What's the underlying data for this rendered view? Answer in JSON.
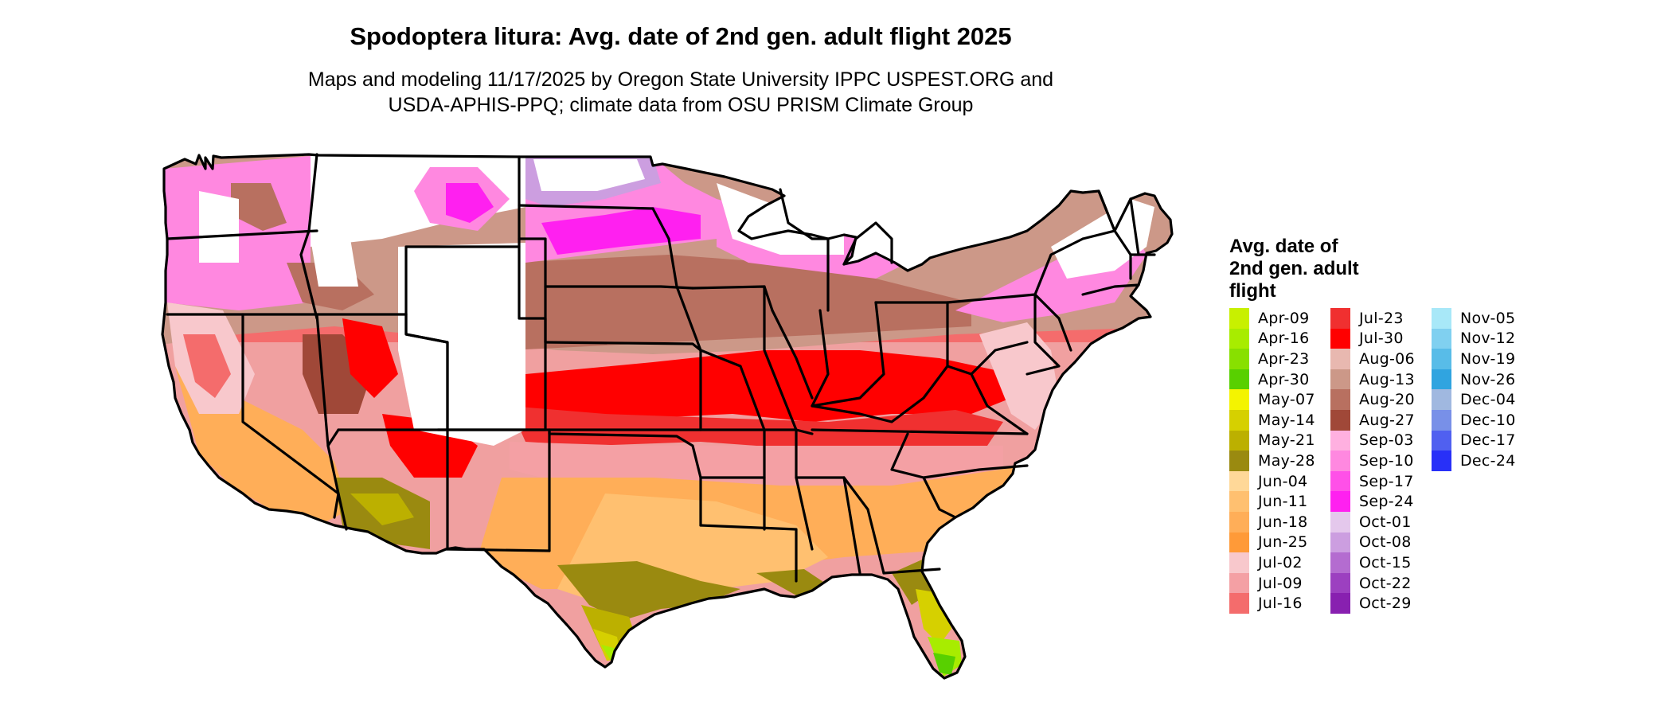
{
  "title": "Spodoptera litura: Avg. date of 2nd gen. adult flight 2025",
  "subtitle_line1": "Maps and modeling 11/17/2025 by Oregon State University IPPC USPEST.ORG and",
  "subtitle_line2": "USDA-APHIS-PPQ; climate data from OSU PRISM Climate Group",
  "legend": {
    "title_line1": "Avg. date of",
    "title_line2": "2nd gen. adult",
    "title_line3": "flight",
    "items": [
      {
        "label": "Apr-09",
        "color": "#c8f000"
      },
      {
        "label": "Apr-16",
        "color": "#a8ec00"
      },
      {
        "label": "Apr-23",
        "color": "#88e000"
      },
      {
        "label": "Apr-30",
        "color": "#58d000"
      },
      {
        "label": "May-07",
        "color": "#f4f400"
      },
      {
        "label": "May-14",
        "color": "#d6d000"
      },
      {
        "label": "May-21",
        "color": "#bcb000"
      },
      {
        "label": "May-28",
        "color": "#9a8a10"
      },
      {
        "label": "Jun-04",
        "color": "#ffd898"
      },
      {
        "label": "Jun-11",
        "color": "#ffc070"
      },
      {
        "label": "Jun-18",
        "color": "#ffae58"
      },
      {
        "label": "Jun-25",
        "color": "#ff9a38"
      },
      {
        "label": "Jul-02",
        "color": "#f8c8cc"
      },
      {
        "label": "Jul-09",
        "color": "#f4a0a4"
      },
      {
        "label": "Jul-16",
        "color": "#f46c6c"
      },
      {
        "label": "Jul-23",
        "color": "#f03030"
      },
      {
        "label": "Jul-30",
        "color": "#ff0000"
      },
      {
        "label": "Aug-06",
        "color": "#e8b8b0"
      },
      {
        "label": "Aug-13",
        "color": "#cc9888"
      },
      {
        "label": "Aug-20",
        "color": "#b87060"
      },
      {
        "label": "Aug-27",
        "color": "#a04838"
      },
      {
        "label": "Sep-03",
        "color": "#ffb0e0"
      },
      {
        "label": "Sep-10",
        "color": "#ff88e0"
      },
      {
        "label": "Sep-17",
        "color": "#ff50e8"
      },
      {
        "label": "Sep-24",
        "color": "#ff20f0"
      },
      {
        "label": "Oct-01",
        "color": "#e4c8ec"
      },
      {
        "label": "Oct-08",
        "color": "#cc9ee0"
      },
      {
        "label": "Oct-15",
        "color": "#b46cd0"
      },
      {
        "label": "Oct-22",
        "color": "#9c40c0"
      },
      {
        "label": "Oct-29",
        "color": "#8820b0"
      },
      {
        "label": "Nov-05",
        "color": "#a8e8f8"
      },
      {
        "label": "Nov-12",
        "color": "#80d0f0"
      },
      {
        "label": "Nov-19",
        "color": "#58bce8"
      },
      {
        "label": "Nov-26",
        "color": "#30a4e0"
      },
      {
        "label": "Dec-04",
        "color": "#a0b8e0"
      },
      {
        "label": "Dec-10",
        "color": "#7890e8"
      },
      {
        "label": "Dec-17",
        "color": "#5060f0"
      },
      {
        "label": "Dec-24",
        "color": "#2830f8"
      }
    ]
  }
}
